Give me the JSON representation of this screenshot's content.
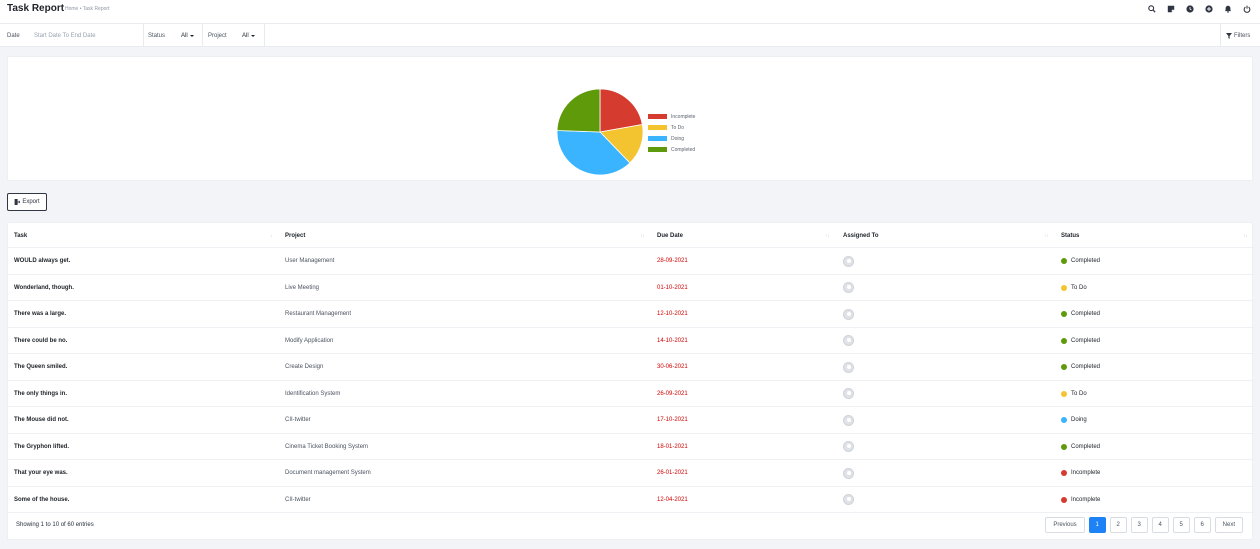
{
  "header": {
    "title": "Task Report",
    "breadcrumb": "Home • Task Report",
    "icons": [
      "search-icon",
      "sticky-note-icon",
      "clock-icon",
      "plus-circle-icon",
      "bell-icon",
      "power-icon"
    ]
  },
  "filters": {
    "date_label": "Date",
    "date_placeholder": "Start Date To End Date",
    "status_label": "Status",
    "status_value": "All",
    "project_label": "Project",
    "project_value": "All",
    "filters_label": "Filters"
  },
  "chart_data": {
    "type": "pie",
    "legend_position": "right",
    "labels": [
      "Incomplete",
      "To Do",
      "Doing",
      "Completed"
    ],
    "values": [
      10,
      7,
      17,
      11
    ],
    "colors": [
      "#d63b2f",
      "#f4c430",
      "#3ab4ff",
      "#5f9a0a"
    ]
  },
  "export_label": "Export",
  "table": {
    "columns": [
      "Task",
      "Project",
      "Due Date",
      "Assigned To",
      "Status"
    ],
    "rows": [
      {
        "task": "WOULD always get.",
        "project": "User Management",
        "due": "28-09-2021",
        "status": "Completed",
        "color": "#5f9a0a"
      },
      {
        "task": "Wonderland, though.",
        "project": "Live Meeting",
        "due": "01-10-2021",
        "status": "To Do",
        "color": "#f4c430"
      },
      {
        "task": "There was a large.",
        "project": "Restaurant Management",
        "due": "12-10-2021",
        "status": "Completed",
        "color": "#5f9a0a"
      },
      {
        "task": "There could be no.",
        "project": "Modify Application",
        "due": "14-10-2021",
        "status": "Completed",
        "color": "#5f9a0a"
      },
      {
        "task": "The Queen smiled.",
        "project": "Create Design",
        "due": "30-06-2021",
        "status": "Completed",
        "color": "#5f9a0a"
      },
      {
        "task": "The only things in.",
        "project": "Identification System",
        "due": "26-09-2021",
        "status": "To Do",
        "color": "#f4c430"
      },
      {
        "task": "The Mouse did not.",
        "project": "CII-twitter",
        "due": "17-10-2021",
        "status": "Doing",
        "color": "#3ab4ff"
      },
      {
        "task": "The Gryphon lifted.",
        "project": "Cinema Ticket Booking System",
        "due": "18-01-2021",
        "status": "Completed",
        "color": "#5f9a0a"
      },
      {
        "task": "That your eye was.",
        "project": "Document management System",
        "due": "26-01-2021",
        "status": "Incomplete",
        "color": "#d63b2f"
      },
      {
        "task": "Some of the house.",
        "project": "CII-twitter",
        "due": "12-04-2021",
        "status": "Incomplete",
        "color": "#d63b2f"
      }
    ]
  },
  "footer": {
    "entries": "Showing 1 to 10 of 60 entries",
    "previous": "Previous",
    "next": "Next",
    "pages": [
      "1",
      "2",
      "3",
      "4",
      "5",
      "6"
    ],
    "active_page": "1"
  }
}
